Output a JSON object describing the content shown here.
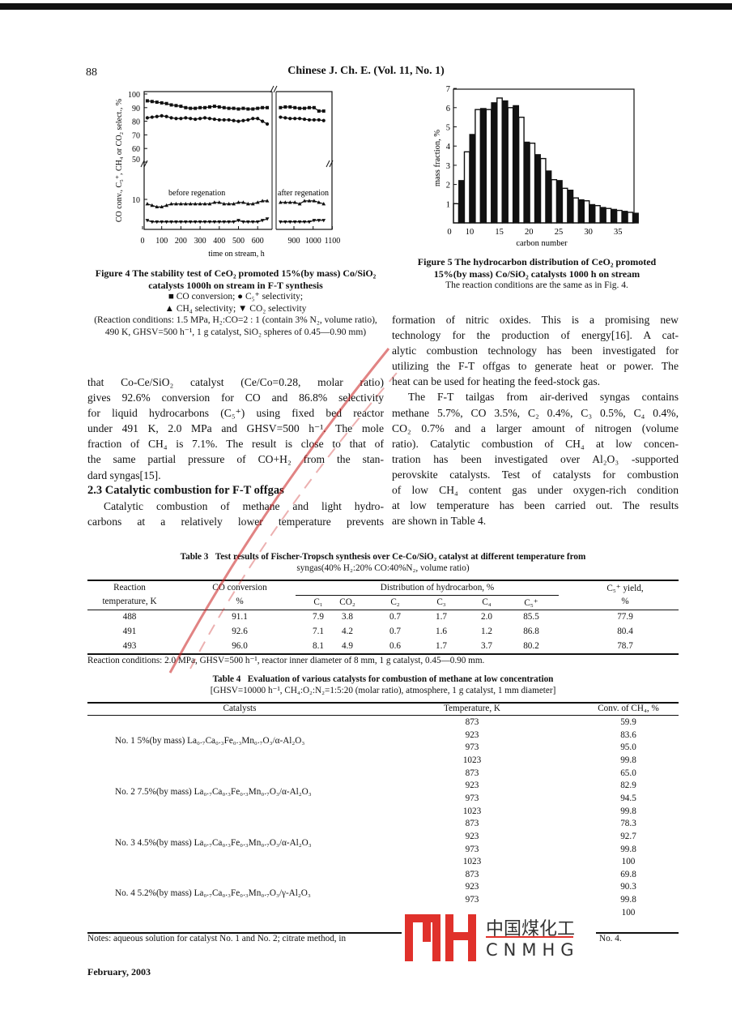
{
  "header": {
    "page_number": "88",
    "running_head": "Chinese J. Ch. E. (Vol. 11, No. 1)"
  },
  "figure4": {
    "caption_title": "Figure 4   The stability test of CeO₂ promoted 15%(by mass) Co/SiO₂ catalysts 1000h on stream in F-T synthesis",
    "legend_line1": "■ CO conversion; ● C₅⁺ selectivity;",
    "legend_line2": "▲ CH₄ selectivity; ▼ CO₂ selectivity",
    "conditions": "(Reaction conditions: 1.5 MPa, H₂:CO=2 : 1 (contain 3% N₂, volume ratio), 490 K, GHSV=500 h⁻¹, 1 g catalyst, SiO₂ spheres of 0.45—0.90 mm)"
  },
  "figure5": {
    "caption_title": "Figure 5   The hydrocarbon distribution of CeO₂ promoted 15%(by mass) Co/SiO₂ catalysts 1000 h on stream",
    "note": "The reaction conditions are the same as in Fig. 4."
  },
  "chart_data": [
    {
      "type": "line",
      "xlabel": "time on stream, h",
      "ylabel": "CO conv., C₅⁺, CH₄ or CO₂ select., %",
      "x_ticks": [
        "0",
        "100",
        "200",
        "300",
        "400",
        "500",
        "600",
        "900",
        "1000",
        "1100"
      ],
      "y_ticks_upper": [
        "50",
        "60",
        "70",
        "80",
        "90",
        "100"
      ],
      "y_ticks_lower": [
        "10"
      ],
      "axis_breaks": {
        "x": "between 600 and 900",
        "y": "between 10 and 50"
      },
      "annotations": [
        "before regenation",
        "after regenation"
      ],
      "x_before": [
        25,
        50,
        75,
        100,
        125,
        150,
        175,
        200,
        225,
        250,
        275,
        300,
        325,
        350,
        375,
        400,
        425,
        450,
        475,
        500,
        525,
        550,
        575,
        600,
        625,
        650
      ],
      "x_after": [
        830,
        855,
        880,
        905,
        930,
        955,
        980,
        1005,
        1030,
        1055
      ],
      "series": [
        {
          "name": "CO conversion",
          "marker": "square",
          "before": [
            95,
            94.5,
            94,
            93.5,
            93,
            92,
            91.5,
            91,
            90,
            89.5,
            89.5,
            90,
            90,
            90.5,
            91,
            90.5,
            90,
            89.5,
            89.5,
            89,
            89.5,
            89,
            89,
            89.5,
            90,
            90
          ],
          "after": [
            90,
            90.5,
            90.5,
            90,
            89.5,
            89.5,
            90,
            90,
            87.5,
            87.5
          ]
        },
        {
          "name": "C₅⁺ selectivity",
          "marker": "circle",
          "before": [
            82.5,
            83,
            83.5,
            84,
            83.5,
            82.5,
            82,
            82,
            82.5,
            82,
            81.5,
            82,
            82.5,
            82,
            81.5,
            81,
            81,
            81,
            80.5,
            80,
            80.5,
            81,
            82,
            82,
            80,
            78
          ],
          "after": [
            83,
            82.5,
            82,
            82,
            82,
            81.5,
            81,
            81,
            81,
            80.5
          ]
        },
        {
          "name": "CH₄ selectivity",
          "marker": "triangle-up",
          "before": [
            8.5,
            8,
            7.5,
            7.5,
            8,
            8.5,
            8.5,
            8.5,
            8.5,
            8.5,
            8.5,
            8.5,
            8.5,
            8.5,
            9,
            9,
            8.5,
            8.5,
            8.5,
            9,
            9,
            8.5,
            8.5,
            9,
            9.5,
            9.5
          ],
          "after": [
            9,
            9,
            9,
            9,
            8.5,
            9.5,
            9.5,
            9.5,
            9,
            8.5
          ]
        },
        {
          "name": "CO₂ selectivity",
          "marker": "triangle-down",
          "before": [
            3,
            2.5,
            2.5,
            2.5,
            2.5,
            2.5,
            2.5,
            2.5,
            2.5,
            2.5,
            2.5,
            2.5,
            2.5,
            2.5,
            2.5,
            2.5,
            2.5,
            2.5,
            2.5,
            3,
            2.5,
            2.5,
            2.5,
            2.5,
            3,
            3.5
          ],
          "after": [
            2.5,
            2.5,
            2.5,
            2.5,
            2.5,
            2.5,
            2.5,
            3,
            3,
            3
          ]
        }
      ]
    },
    {
      "type": "bar",
      "xlabel": "carbon number",
      "ylabel": "mass fraction, %",
      "x_ticks": [
        "0",
        "10",
        "15",
        "20",
        "25",
        "30",
        "35"
      ],
      "y_ticks": [
        "1",
        "2",
        "3",
        "4",
        "5",
        "6",
        "7"
      ],
      "ylim": [
        0,
        7
      ],
      "categories": [
        7,
        8,
        9,
        10,
        11,
        12,
        13,
        14,
        15,
        16,
        17,
        18,
        19,
        20,
        21,
        22,
        23,
        24,
        25,
        26,
        27,
        28,
        29,
        30,
        31,
        32,
        33,
        34,
        35,
        36,
        37,
        38,
        39,
        40
      ],
      "values": [
        1.0,
        2.2,
        3.7,
        4.6,
        5.9,
        5.95,
        5.9,
        6.25,
        6.5,
        6.35,
        6.0,
        6.1,
        5.5,
        4.2,
        4.15,
        3.55,
        3.35,
        2.7,
        2.25,
        2.2,
        1.8,
        1.7,
        1.3,
        1.2,
        1.15,
        0.95,
        0.9,
        0.8,
        0.75,
        0.7,
        0.65,
        0.6,
        0.55,
        0.5
      ]
    }
  ],
  "left_column": {
    "lines_a": [
      "that Co-Ce/SiO₂ catalyst (Ce/Co=0.28, molar ratio)",
      "gives 92.6% conversion for CO and 86.8% selectivity",
      "for liquid hydrocarbons (C₅⁺) using fixed bed reactor",
      "under 491 K, 2.0 MPa and GHSV=500 h⁻¹. The mole",
      "fraction of CH₄ is 7.1%. The result is close to that of",
      "the same partial pressure of CO+H₂ from the stan-",
      "dard syngas[15]."
    ],
    "heading": "2.3  Catalytic combustion for F-T offgas",
    "lines_b": [
      "Catalytic combustion of methane and light hydro-",
      "carbons at a relatively lower temperature prevents"
    ]
  },
  "right_column": {
    "lines": [
      "formation of nitric oxides.  This is a promising new",
      "technology for the production of energy[16].  A cat-",
      "alytic combustion technology has been investigated for",
      "utilizing the F-T offgas to generate heat or power. The",
      "heat can be used for heating the feed-stock gas.",
      "The F-T tailgas from air-derived syngas contains",
      "methane 5.7%, CO 3.5%, C₂ 0.4%, C₃ 0.5%, C₄ 0.4%,",
      "CO₂ 0.7% and a larger amount of nitrogen (volume",
      "ratio).  Catalytic combustion of CH₄ at low concen-",
      "tration has been investigated over Al₂O₃ -supported",
      "perovskite catalysts. Test of catalysts for combustion",
      "of low CH₄ content gas under oxygen-rich condition",
      "at low temperature has been carried out. The results",
      "are shown in Table 4."
    ]
  },
  "table3": {
    "caption_label": "Table 3",
    "caption_line1": "Test results of Fischer-Tropsch synthesis over Ce-Co/SiO₂ catalyst at different temperature from",
    "caption_line2": "syngas(40% H₂:20% CO:40%N₂, volume ratio)",
    "header": {
      "temp_1": "Reaction",
      "temp_2": "temperature, K",
      "conv_1": "CO conversion",
      "conv_2": "%",
      "dist": "Distribution of hydrocarbon, %",
      "sub": [
        "C₁",
        "CO₂",
        "C₂",
        "C₃",
        "C₄",
        "C₅⁺"
      ],
      "yield_1": "C₅⁺ yield,",
      "yield_2": "%"
    },
    "rows": [
      [
        "488",
        "91.1",
        "7.9",
        "3.8",
        "0.7",
        "1.7",
        "2.0",
        "85.5",
        "77.9"
      ],
      [
        "491",
        "92.6",
        "7.1",
        "4.2",
        "0.7",
        "1.6",
        "1.2",
        "86.8",
        "80.4"
      ],
      [
        "493",
        "96.0",
        "8.1",
        "4.9",
        "0.6",
        "1.7",
        "3.7",
        "80.2",
        "78.7"
      ]
    ],
    "note": "Reaction conditions: 2.0 MPa, GHSV=500 h⁻¹, reactor inner diameter of 8 mm, 1 g catalyst, 0.45—0.90 mm."
  },
  "table4": {
    "caption_label": "Table 4",
    "caption_line1": "Evaluation of various catalysts for combustion of methane at low concentration",
    "caption_line2": "[GHSV=10000 h⁻¹, CH₄:O₂:N₂=1:5:20 (molar ratio), atmosphere, 1 g catalyst, 1 mm diameter]",
    "headers": [
      "Catalysts",
      "Temperature, K",
      "Conv. of CH₄, %"
    ],
    "groups": [
      {
        "catalyst": "No. 1   5%(by mass) La₀.₇Ca₀.₃Fe₀.₃Mn₀.₇O₃/α-Al₂O₃",
        "rows": [
          [
            "873",
            "59.9"
          ],
          [
            "923",
            "83.6"
          ],
          [
            "973",
            "95.0"
          ],
          [
            "1023",
            "99.8"
          ]
        ]
      },
      {
        "catalyst": "No. 2   7.5%(by mass) La₀.₇Ca₀.₃Fe₀.₃Mn₀.₇O₃/α-Al₂O₃",
        "rows": [
          [
            "873",
            "65.0"
          ],
          [
            "923",
            "82.9"
          ],
          [
            "973",
            "94.5"
          ],
          [
            "1023",
            "99.8"
          ]
        ]
      },
      {
        "catalyst": "No. 3   4.5%(by mass) La₀.₇Ca₀.₃Fe₀.₃Mn₀.₇O₃/α-Al₂O₃",
        "rows": [
          [
            "873",
            "78.3"
          ],
          [
            "923",
            "92.7"
          ],
          [
            "973",
            "99.8"
          ],
          [
            "1023",
            "100"
          ]
        ]
      },
      {
        "catalyst": "No. 4   5.2%(by mass) La₀.₇Ca₀.₃Fe₀.₃Mn₀.₇O₃/γ-Al₂O₃",
        "rows": [
          [
            "873",
            "69.8"
          ],
          [
            "923",
            "90.3"
          ],
          [
            "973",
            "99.8"
          ],
          [
            "",
            "100"
          ]
        ]
      }
    ],
    "note_left": "Notes: aqueous solution for catalyst No. 1 and No. 2; citrate method, in",
    "note_right": "No. 4."
  },
  "footer": {
    "date": "February, 2003"
  },
  "watermark": {
    "text": "http://www.cnmhg",
    "color": "#c81e1e"
  },
  "logo": {
    "mark": "MH",
    "chinese": "中国煤化工",
    "latin": "CNMHG",
    "color": "#e0312b"
  }
}
